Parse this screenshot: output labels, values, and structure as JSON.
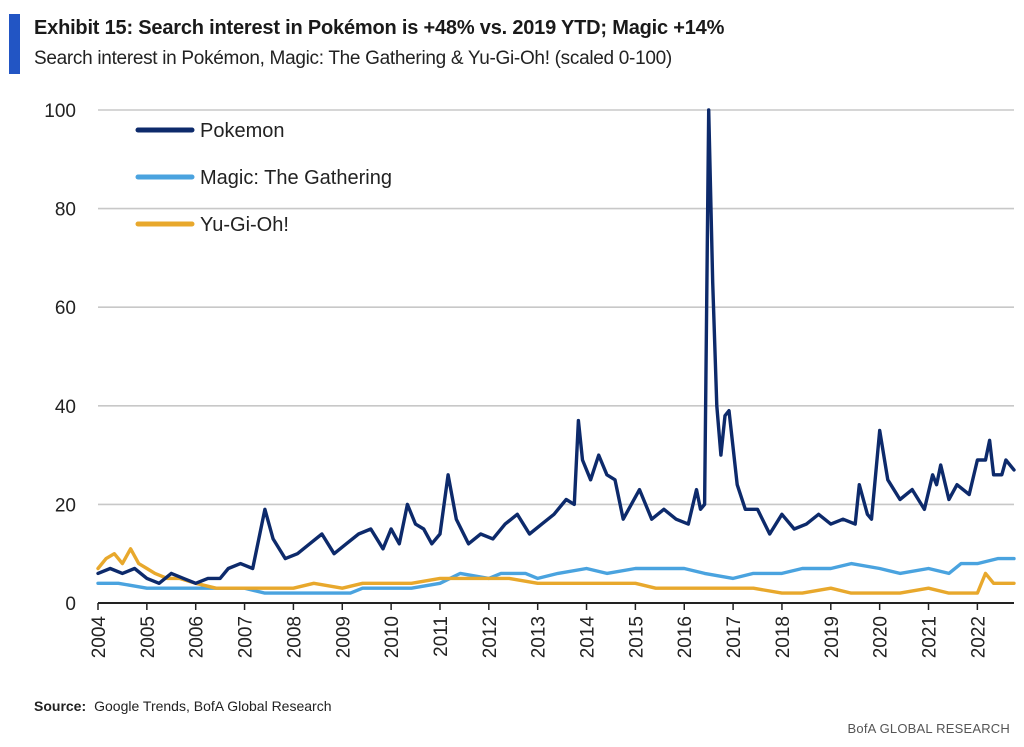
{
  "header": {
    "title": "Exhibit 15: Search interest in Pokémon is +48% vs. 2019 YTD; Magic +14%",
    "subtitle": "Search interest in Pokémon, Magic: The Gathering & Yu-Gi-Oh! (scaled 0-100)",
    "accent_color": "#2255c4"
  },
  "footer": {
    "source_label": "Source:",
    "source_text": "Google Trends, BofA Global Research",
    "brand": "BofA GLOBAL RESEARCH"
  },
  "chart_data": {
    "type": "line",
    "title": "Exhibit 15: Search interest in Pokémon is +48% vs. 2019 YTD; Magic +14%",
    "subtitle": "Search interest in Pokémon, Magic: The Gathering & Yu-Gi-Oh! (scaled 0-100)",
    "xlabel": "",
    "ylabel": "",
    "x_range": [
      "2004-01",
      "2022-10"
    ],
    "ylim": [
      0,
      100
    ],
    "y_ticks": [
      0,
      20,
      40,
      60,
      80,
      100
    ],
    "x_ticks": [
      "2004",
      "2005",
      "2006",
      "2007",
      "2008",
      "2009",
      "2010",
      "2011",
      "2012",
      "2013",
      "2014",
      "2015",
      "2016",
      "2017",
      "2018",
      "2019",
      "2020",
      "2021",
      "2022"
    ],
    "grid": "horizontal",
    "legend_position": "top-left",
    "series": [
      {
        "name": "Pokemon",
        "color": "#0d2a6b",
        "points": [
          [
            "2004-01",
            6
          ],
          [
            "2004-04",
            7
          ],
          [
            "2004-07",
            6
          ],
          [
            "2004-10",
            7
          ],
          [
            "2005-01",
            5
          ],
          [
            "2005-04",
            4
          ],
          [
            "2005-07",
            6
          ],
          [
            "2005-10",
            5
          ],
          [
            "2006-01",
            4
          ],
          [
            "2006-04",
            5
          ],
          [
            "2006-07",
            5
          ],
          [
            "2006-09",
            7
          ],
          [
            "2006-12",
            8
          ],
          [
            "2007-03",
            7
          ],
          [
            "2007-06",
            19
          ],
          [
            "2007-08",
            13
          ],
          [
            "2007-11",
            9
          ],
          [
            "2008-02",
            10
          ],
          [
            "2008-05",
            12
          ],
          [
            "2008-08",
            14
          ],
          [
            "2008-11",
            10
          ],
          [
            "2009-02",
            12
          ],
          [
            "2009-05",
            14
          ],
          [
            "2009-08",
            15
          ],
          [
            "2009-11",
            11
          ],
          [
            "2010-01",
            15
          ],
          [
            "2010-03",
            12
          ],
          [
            "2010-05",
            20
          ],
          [
            "2010-07",
            16
          ],
          [
            "2010-09",
            15
          ],
          [
            "2010-11",
            12
          ],
          [
            "2011-01",
            14
          ],
          [
            "2011-03",
            26
          ],
          [
            "2011-05",
            17
          ],
          [
            "2011-08",
            12
          ],
          [
            "2011-11",
            14
          ],
          [
            "2012-02",
            13
          ],
          [
            "2012-05",
            16
          ],
          [
            "2012-08",
            18
          ],
          [
            "2012-11",
            14
          ],
          [
            "2013-02",
            16
          ],
          [
            "2013-05",
            18
          ],
          [
            "2013-08",
            21
          ],
          [
            "2013-10",
            20
          ],
          [
            "2013-11",
            37
          ],
          [
            "2013-12",
            29
          ],
          [
            "2014-02",
            25
          ],
          [
            "2014-04",
            30
          ],
          [
            "2014-06",
            26
          ],
          [
            "2014-08",
            25
          ],
          [
            "2014-10",
            17
          ],
          [
            "2014-12",
            20
          ],
          [
            "2015-02",
            23
          ],
          [
            "2015-05",
            17
          ],
          [
            "2015-08",
            19
          ],
          [
            "2015-11",
            17
          ],
          [
            "2016-02",
            16
          ],
          [
            "2016-04",
            23
          ],
          [
            "2016-05",
            19
          ],
          [
            "2016-06",
            20
          ],
          [
            "2016-07",
            100
          ],
          [
            "2016-08",
            65
          ],
          [
            "2016-09",
            40
          ],
          [
            "2016-10",
            30
          ],
          [
            "2016-11",
            38
          ],
          [
            "2016-12",
            39
          ],
          [
            "2017-02",
            24
          ],
          [
            "2017-04",
            19
          ],
          [
            "2017-07",
            19
          ],
          [
            "2017-10",
            14
          ],
          [
            "2018-01",
            18
          ],
          [
            "2018-04",
            15
          ],
          [
            "2018-07",
            16
          ],
          [
            "2018-10",
            18
          ],
          [
            "2019-01",
            16
          ],
          [
            "2019-04",
            17
          ],
          [
            "2019-07",
            16
          ],
          [
            "2019-08",
            24
          ],
          [
            "2019-10",
            18
          ],
          [
            "2019-11",
            17
          ],
          [
            "2020-01",
            35
          ],
          [
            "2020-03",
            25
          ],
          [
            "2020-06",
            21
          ],
          [
            "2020-09",
            23
          ],
          [
            "2020-12",
            19
          ],
          [
            "2021-02",
            26
          ],
          [
            "2021-03",
            24
          ],
          [
            "2021-04",
            28
          ],
          [
            "2021-06",
            21
          ],
          [
            "2021-08",
            24
          ],
          [
            "2021-11",
            22
          ],
          [
            "2022-01",
            29
          ],
          [
            "2022-03",
            29
          ],
          [
            "2022-04",
            33
          ],
          [
            "2022-05",
            26
          ],
          [
            "2022-07",
            26
          ],
          [
            "2022-08",
            29
          ],
          [
            "2022-10",
            27
          ]
        ]
      },
      {
        "name": "Magic: The Gathering",
        "color": "#4aa3df",
        "points": [
          [
            "2004-01",
            4
          ],
          [
            "2004-06",
            4
          ],
          [
            "2005-01",
            3
          ],
          [
            "2005-06",
            3
          ],
          [
            "2006-01",
            3
          ],
          [
            "2006-06",
            3
          ],
          [
            "2007-01",
            3
          ],
          [
            "2007-06",
            2
          ],
          [
            "2008-01",
            2
          ],
          [
            "2008-06",
            2
          ],
          [
            "2009-01",
            2
          ],
          [
            "2009-03",
            2
          ],
          [
            "2009-06",
            3
          ],
          [
            "2010-01",
            3
          ],
          [
            "2010-06",
            3
          ],
          [
            "2011-01",
            4
          ],
          [
            "2011-06",
            6
          ],
          [
            "2012-01",
            5
          ],
          [
            "2012-04",
            6
          ],
          [
            "2012-10",
            6
          ],
          [
            "2013-01",
            5
          ],
          [
            "2013-06",
            6
          ],
          [
            "2014-01",
            7
          ],
          [
            "2014-06",
            6
          ],
          [
            "2015-01",
            7
          ],
          [
            "2015-06",
            7
          ],
          [
            "2016-01",
            7
          ],
          [
            "2016-06",
            6
          ],
          [
            "2017-01",
            5
          ],
          [
            "2017-06",
            6
          ],
          [
            "2018-01",
            6
          ],
          [
            "2018-06",
            7
          ],
          [
            "2019-01",
            7
          ],
          [
            "2019-06",
            8
          ],
          [
            "2020-01",
            7
          ],
          [
            "2020-06",
            6
          ],
          [
            "2021-01",
            7
          ],
          [
            "2021-06",
            6
          ],
          [
            "2021-09",
            8
          ],
          [
            "2022-01",
            8
          ],
          [
            "2022-06",
            9
          ],
          [
            "2022-10",
            9
          ]
        ]
      },
      {
        "name": "Yu-Gi-Oh!",
        "color": "#e8a82c",
        "points": [
          [
            "2004-01",
            7
          ],
          [
            "2004-03",
            9
          ],
          [
            "2004-05",
            10
          ],
          [
            "2004-07",
            8
          ],
          [
            "2004-09",
            11
          ],
          [
            "2004-11",
            8
          ],
          [
            "2005-01",
            7
          ],
          [
            "2005-03",
            6
          ],
          [
            "2005-06",
            5
          ],
          [
            "2005-09",
            5
          ],
          [
            "2006-01",
            4
          ],
          [
            "2006-06",
            3
          ],
          [
            "2007-01",
            3
          ],
          [
            "2007-06",
            3
          ],
          [
            "2008-01",
            3
          ],
          [
            "2008-06",
            4
          ],
          [
            "2009-01",
            3
          ],
          [
            "2009-06",
            4
          ],
          [
            "2010-01",
            4
          ],
          [
            "2010-06",
            4
          ],
          [
            "2011-01",
            5
          ],
          [
            "2011-06",
            5
          ],
          [
            "2012-01",
            5
          ],
          [
            "2012-06",
            5
          ],
          [
            "2013-01",
            4
          ],
          [
            "2013-06",
            4
          ],
          [
            "2014-01",
            4
          ],
          [
            "2014-06",
            4
          ],
          [
            "2015-01",
            4
          ],
          [
            "2015-06",
            3
          ],
          [
            "2016-01",
            3
          ],
          [
            "2016-06",
            3
          ],
          [
            "2017-01",
            3
          ],
          [
            "2017-06",
            3
          ],
          [
            "2018-01",
            2
          ],
          [
            "2018-06",
            2
          ],
          [
            "2019-01",
            3
          ],
          [
            "2019-06",
            2
          ],
          [
            "2020-01",
            2
          ],
          [
            "2020-06",
            2
          ],
          [
            "2021-01",
            3
          ],
          [
            "2021-06",
            2
          ],
          [
            "2022-01",
            2
          ],
          [
            "2022-03",
            6
          ],
          [
            "2022-05",
            4
          ],
          [
            "2022-07",
            4
          ],
          [
            "2022-10",
            4
          ]
        ]
      }
    ]
  }
}
